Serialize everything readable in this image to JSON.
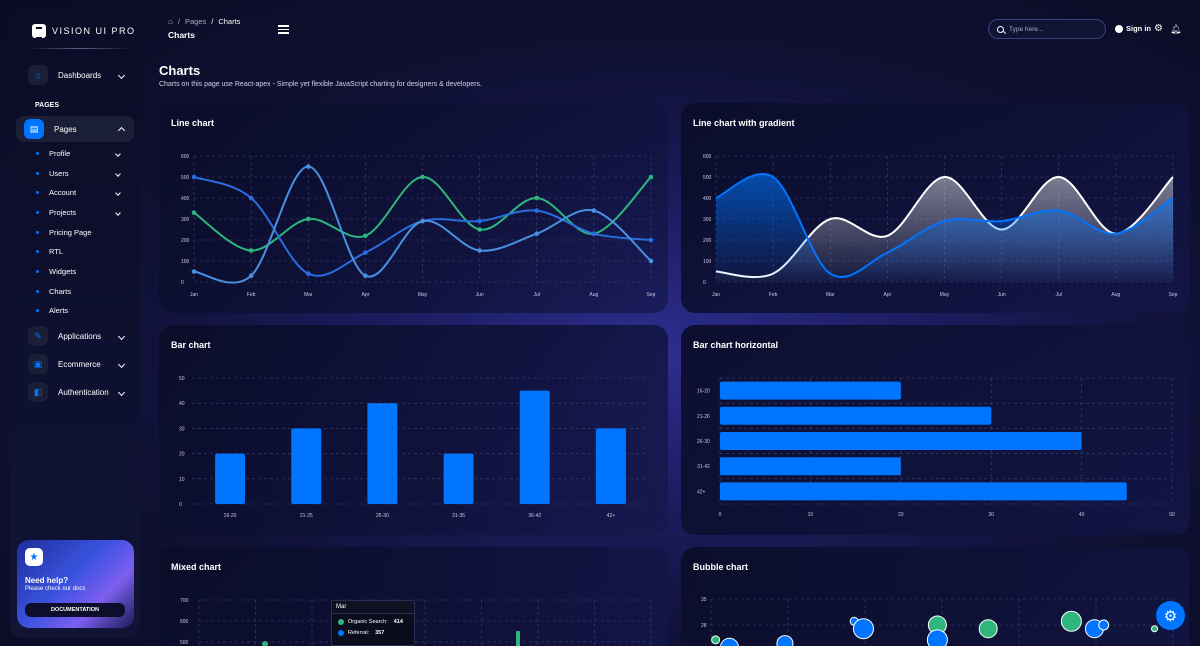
{
  "sidebar": {
    "brand": "VISION UI PRO",
    "dashboards": "Dashboards",
    "section": "PAGES",
    "pages": "Pages",
    "sub_items": [
      "Profile",
      "Users",
      "Account",
      "Projects",
      "Pricing Page",
      "RTL",
      "Widgets",
      "Charts",
      "Alerts"
    ],
    "applications": "Applications",
    "ecommerce": "Ecommerce",
    "authentication": "Authentication",
    "help": {
      "title": "Need help?",
      "subtitle": "Please check our docs",
      "button": "DOCUMENTATION"
    }
  },
  "header": {
    "crumb_pages": "Pages",
    "crumb_current": "Charts",
    "title": "Charts",
    "search_placeholder": "Type here...",
    "signin": "Sign in"
  },
  "page": {
    "title": "Charts",
    "subtitle": "Charts on this page use React-apex - Simple yet flexible JavaScript charting for designers & developers."
  },
  "colors": {
    "accent": "#0075ff",
    "green": "#2eb67d",
    "light_blue": "#4a90e2",
    "white": "#ffffff"
  },
  "chart_data": [
    {
      "title": "Line chart",
      "type": "line",
      "categories": [
        "Jan",
        "Feb",
        "Mar",
        "Apr",
        "May",
        "Jun",
        "Jul",
        "Aug",
        "Sep"
      ],
      "ylim": [
        0,
        600
      ],
      "yticks": [
        0,
        100,
        200,
        300,
        400,
        500,
        600
      ],
      "series": [
        {
          "color": "#2eb67d",
          "values": [
            330,
            150,
            300,
            220,
            500,
            250,
            400,
            230,
            500
          ]
        },
        {
          "color": "#2a6de0",
          "values": [
            500,
            400,
            40,
            140,
            290,
            290,
            340,
            230,
            200
          ]
        },
        {
          "color": "#4a90e2",
          "values": [
            50,
            30,
            550,
            30,
            290,
            150,
            230,
            340,
            100
          ]
        }
      ]
    },
    {
      "title": "Line chart with gradient",
      "type": "area",
      "categories": [
        "Jan",
        "Feb",
        "Mar",
        "Apr",
        "May",
        "Jun",
        "Jul",
        "Aug",
        "Sep"
      ],
      "ylim": [
        0,
        600
      ],
      "yticks": [
        0,
        100,
        200,
        300,
        400,
        500,
        600
      ],
      "series": [
        {
          "color": "#ffffff",
          "values": [
            50,
            40,
            300,
            220,
            500,
            250,
            500,
            230,
            500
          ]
        },
        {
          "color": "#0075ff",
          "values": [
            400,
            500,
            40,
            140,
            290,
            290,
            340,
            230,
            400
          ]
        }
      ]
    },
    {
      "title": "Bar chart",
      "type": "bar",
      "categories": [
        "16-20",
        "21-25",
        "26-30",
        "31-35",
        "36-42",
        "42+"
      ],
      "values": [
        20,
        30,
        40,
        20,
        45,
        30
      ],
      "ylim": [
        0,
        50
      ],
      "yticks": [
        0,
        10,
        20,
        30,
        40,
        50
      ]
    },
    {
      "title": "Bar chart horizontal",
      "type": "bar",
      "orientation": "horizontal",
      "categories": [
        "16-20",
        "21-26",
        "26-30",
        "31-42",
        "42+"
      ],
      "values": [
        20,
        30,
        40,
        20,
        45
      ],
      "xlim": [
        0,
        50
      ],
      "xticks": [
        0,
        10,
        20,
        30,
        40,
        50
      ]
    },
    {
      "title": "Mixed chart",
      "type": "bar",
      "yticks": [
        500,
        600,
        700
      ],
      "tooltip": {
        "category": "Mar",
        "rows": [
          {
            "label": "Organic Search:",
            "value": "414",
            "color": "#2eb67d"
          },
          {
            "label": "Referral:",
            "value": "357",
            "color": "#0075ff"
          }
        ]
      }
    },
    {
      "title": "Bubble chart",
      "type": "scatter",
      "yticks": [
        28,
        35
      ],
      "points": [
        {
          "x": 0.01,
          "y": 24,
          "r": 4,
          "color": "#2eb67d"
        },
        {
          "x": 0.04,
          "y": 22,
          "r": 9,
          "color": "#0075ff"
        },
        {
          "x": 0.16,
          "y": 23,
          "r": 8,
          "color": "#0075ff"
        },
        {
          "x": 0.31,
          "y": 29,
          "r": 4,
          "color": "#0075ff"
        },
        {
          "x": 0.33,
          "y": 27,
          "r": 10,
          "color": "#0075ff"
        },
        {
          "x": 0.49,
          "y": 28,
          "r": 9,
          "color": "#2eb67d"
        },
        {
          "x": 0.49,
          "y": 24,
          "r": 10,
          "color": "#0075ff"
        },
        {
          "x": 0.6,
          "y": 27,
          "r": 9,
          "color": "#2eb67d"
        },
        {
          "x": 0.78,
          "y": 29,
          "r": 10,
          "color": "#2eb67d"
        },
        {
          "x": 0.83,
          "y": 27,
          "r": 9,
          "color": "#0075ff"
        },
        {
          "x": 0.85,
          "y": 28,
          "r": 5,
          "color": "#0075ff"
        },
        {
          "x": 0.96,
          "y": 27,
          "r": 3,
          "color": "#2eb67d"
        }
      ]
    }
  ]
}
